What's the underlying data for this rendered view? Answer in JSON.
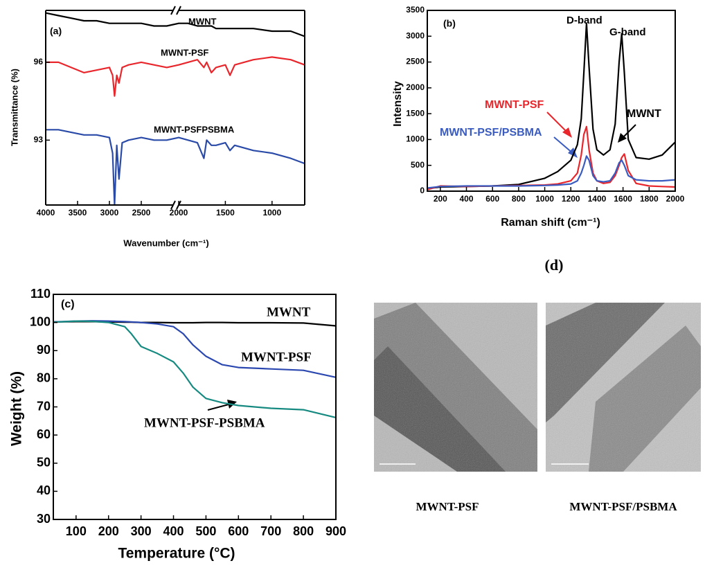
{
  "chart_data": [
    {
      "type": "line",
      "ylabel": "Transmittance (%)",
      "xlabel": "Wavenumber (cm⁻¹)",
      "annotations": [
        {
          "text": "(a)",
          "color": "#000000"
        }
      ],
      "xlim": [
        4000,
        650
      ],
      "xbreak": 2000,
      "xticks": [
        4000,
        3500,
        3000,
        2500,
        2000,
        1500,
        1000
      ],
      "ylim": [
        90.5,
        98.0
      ],
      "yticks": [
        93,
        96
      ],
      "x": [
        4000,
        3800,
        3600,
        3400,
        3200,
        3000,
        2950,
        2920,
        2885,
        2850,
        2800,
        2700,
        2500,
        2300,
        2100,
        2000,
        1900,
        1800,
        1730,
        1700,
        1650,
        1600,
        1500,
        1450,
        1400,
        1200,
        1000,
        800,
        650
      ],
      "series": [
        {
          "name": "MWNT",
          "color": "#000000",
          "values": [
            97.9,
            97.8,
            97.7,
            97.6,
            97.6,
            97.5,
            97.5,
            97.5,
            97.5,
            97.5,
            97.5,
            97.5,
            97.5,
            97.4,
            97.4,
            97.5,
            97.5,
            97.4,
            97.4,
            97.4,
            97.4,
            97.3,
            97.3,
            97.3,
            97.3,
            97.3,
            97.2,
            97.2,
            97.0
          ]
        },
        {
          "name": "MWNT-PSF",
          "color": "#e8262b",
          "values": [
            96.0,
            96.0,
            95.8,
            95.6,
            95.7,
            95.8,
            95.5,
            94.7,
            95.5,
            95.2,
            95.8,
            95.9,
            96.0,
            95.9,
            95.8,
            95.9,
            96.0,
            96.1,
            95.8,
            96.0,
            95.6,
            95.8,
            95.9,
            95.5,
            95.9,
            96.1,
            96.2,
            96.1,
            95.9
          ]
        },
        {
          "name": "MWNT-PSFPSBMA",
          "color": "#2a4aa8",
          "values": [
            93.4,
            93.4,
            93.3,
            93.2,
            93.2,
            93.1,
            92.5,
            90.5,
            92.8,
            91.5,
            92.9,
            93.0,
            93.1,
            93.0,
            93.0,
            93.1,
            93.0,
            92.9,
            92.3,
            93.0,
            92.8,
            92.8,
            92.9,
            92.6,
            92.8,
            92.6,
            92.5,
            92.3,
            92.1
          ]
        }
      ]
    },
    {
      "type": "line",
      "ylabel": "Intensity",
      "xlabel": "Raman shift (cm⁻¹)",
      "annotations": [
        {
          "text": "(b)",
          "color": "#000000"
        },
        {
          "text": "D-band",
          "color": "#000000"
        },
        {
          "text": "G-band",
          "color": "#000000"
        }
      ],
      "xlim": [
        100,
        2000
      ],
      "xticks": [
        200,
        400,
        600,
        800,
        1000,
        1200,
        1400,
        1600,
        1800,
        2000
      ],
      "ylim": [
        0,
        3500
      ],
      "yticks": [
        0,
        500,
        1000,
        1500,
        2000,
        2500,
        3000,
        3500
      ],
      "x": [
        100,
        200,
        400,
        600,
        800,
        1000,
        1100,
        1200,
        1250,
        1280,
        1300,
        1320,
        1340,
        1370,
        1400,
        1450,
        1500,
        1540,
        1570,
        1590,
        1610,
        1640,
        1700,
        1800,
        1900,
        2000
      ],
      "series": [
        {
          "name": "MWNT",
          "color": "#000000",
          "values": [
            50,
            80,
            90,
            100,
            130,
            250,
            380,
            600,
            900,
            1400,
            2300,
            3250,
            2400,
            1200,
            800,
            700,
            800,
            1300,
            2500,
            3050,
            2300,
            1000,
            650,
            620,
            700,
            950
          ]
        },
        {
          "name": "MWNT-PSF",
          "color": "#e8262b",
          "values": [
            30,
            100,
            90,
            100,
            110,
            120,
            140,
            200,
            350,
            700,
            1100,
            1250,
            800,
            350,
            200,
            150,
            170,
            300,
            500,
            650,
            720,
            400,
            150,
            100,
            90,
            80
          ]
        },
        {
          "name": "MWNT-PSF/PSBMA",
          "color": "#3a5bc0",
          "values": [
            60,
            90,
            100,
            100,
            100,
            110,
            120,
            140,
            200,
            350,
            500,
            680,
            600,
            300,
            200,
            180,
            200,
            350,
            550,
            600,
            500,
            300,
            220,
            200,
            200,
            220
          ]
        }
      ]
    },
    {
      "type": "line",
      "ylabel": "Weight (%)",
      "xlabel": "Temperature (°C)",
      "annotations": [
        {
          "text": "(c)",
          "color": "#000000"
        }
      ],
      "xlim": [
        30,
        900
      ],
      "xticks": [
        100,
        200,
        300,
        400,
        500,
        600,
        700,
        800,
        900
      ],
      "ylim": [
        30,
        110
      ],
      "yticks": [
        30,
        40,
        50,
        60,
        70,
        80,
        90,
        100,
        110
      ],
      "x": [
        30,
        100,
        150,
        200,
        250,
        270,
        300,
        350,
        400,
        430,
        460,
        500,
        550,
        600,
        700,
        800,
        900
      ],
      "series": [
        {
          "name": "MWNT",
          "color": "#000000",
          "values": [
            100.2,
            100.3,
            100.3,
            100.2,
            100.1,
            100.1,
            100.0,
            100.0,
            99.9,
            99.9,
            99.9,
            100.0,
            100.0,
            99.9,
            99.9,
            99.8,
            98.8
          ]
        },
        {
          "name": "MWNT-PSF",
          "color": "#2b48b0",
          "values": [
            100.2,
            100.5,
            100.6,
            100.5,
            100.3,
            100.2,
            100.0,
            99.5,
            98.5,
            96,
            92,
            88,
            85,
            84,
            83.5,
            83,
            80.5
          ]
        },
        {
          "name": "MWNT-PSF-PSBMA",
          "color": "#168a80",
          "values": [
            100.1,
            100.5,
            100.4,
            100.0,
            98.5,
            96,
            91.5,
            89,
            86,
            82,
            77,
            73,
            71.5,
            70.5,
            69.5,
            69,
            66.2
          ]
        }
      ]
    }
  ],
  "panel_d": {
    "label": "(d)",
    "captions": [
      "MWNT-PSF",
      "MWNT-PSF/PSBMA"
    ]
  }
}
